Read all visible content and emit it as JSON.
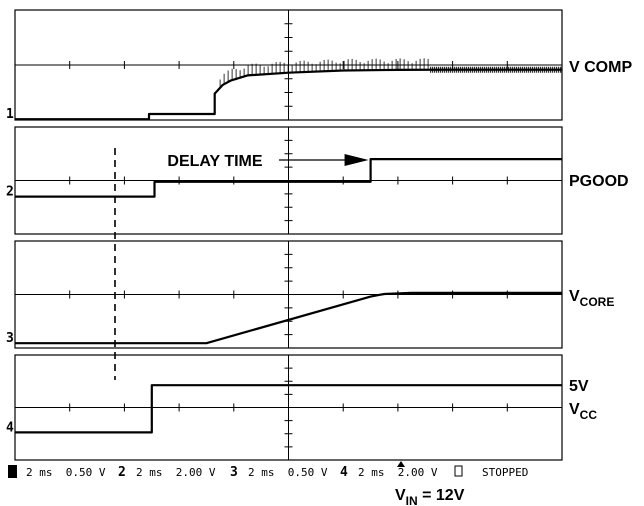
{
  "chart_data": {
    "type": "line",
    "x_unit": "ms",
    "xlim": [
      0,
      20
    ],
    "divisions": 10,
    "channels": [
      {
        "id": "1",
        "marker": "1",
        "label": "V COMP",
        "label_lines": [
          "V COMP"
        ],
        "scale": "0.50 V",
        "ylim": [
          -1.0,
          1.0
        ],
        "trace": {
          "x": [
            0,
            4.9,
            4.9,
            7.3,
            7.3,
            7.6,
            7.9,
            8.5,
            10,
            12,
            14,
            16,
            18,
            20
          ],
          "y": [
            -0.985,
            -0.985,
            -0.89,
            -0.89,
            -0.52,
            -0.36,
            -0.28,
            -0.19,
            -0.14,
            -0.1,
            -0.09,
            -0.085,
            -0.085,
            -0.085
          ]
        },
        "ripple": {
          "x_start": 7.5,
          "x_end": 15.2,
          "amplitude": 0.21
        }
      },
      {
        "id": "2",
        "marker": "2",
        "label": "PGOOD",
        "label_lines": [
          "PGOOD"
        ],
        "scale": "2.00 V",
        "ylim": [
          -4.0,
          4.0
        ],
        "trace": {
          "x": [
            0,
            5.1,
            5.1,
            13.0,
            13.0,
            20
          ],
          "y": [
            -1.2,
            -1.2,
            -0.1,
            -0.1,
            1.6,
            1.6
          ]
        }
      },
      {
        "id": "3",
        "marker": "3",
        "label": "VCORE",
        "label_lines": [
          "V",
          "CORE"
        ],
        "scale": "0.50 V",
        "ylim": [
          -1.0,
          1.0
        ],
        "trace": {
          "x": [
            0,
            7.0,
            13.0,
            13.5,
            14.5,
            16,
            20
          ],
          "y": [
            -0.91,
            -0.91,
            -0.04,
            0.01,
            0.03,
            0.03,
            0.03
          ]
        }
      },
      {
        "id": "4",
        "marker": "4",
        "label": "5V VCC",
        "label_lines": [
          "5V",
          "V",
          "CC"
        ],
        "scale": "2.00 V",
        "ylim": [
          -4.0,
          4.0
        ],
        "trace": {
          "x": [
            0,
            5.0,
            5.0,
            20
          ],
          "y": [
            -1.9,
            -1.9,
            1.7,
            1.7
          ]
        }
      }
    ],
    "annotations": {
      "delay_time": {
        "text": "DELAY TIME",
        "x_start": 5.1,
        "x_end": 13.0
      }
    },
    "status_bar": {
      "items": [
        {
          "marker": "1",
          "text": "2 ms  0.50 V"
        },
        {
          "marker": "2",
          "text": "2 ms  2.00 V"
        },
        {
          "marker": "3",
          "text": "2 ms  0.50 V"
        },
        {
          "marker": "4",
          "text": "2 ms  2.00 V"
        }
      ],
      "state": "STOPPED"
    },
    "vin": {
      "prefix": "V",
      "subscript": "IN",
      "suffix": " = 12V"
    }
  }
}
